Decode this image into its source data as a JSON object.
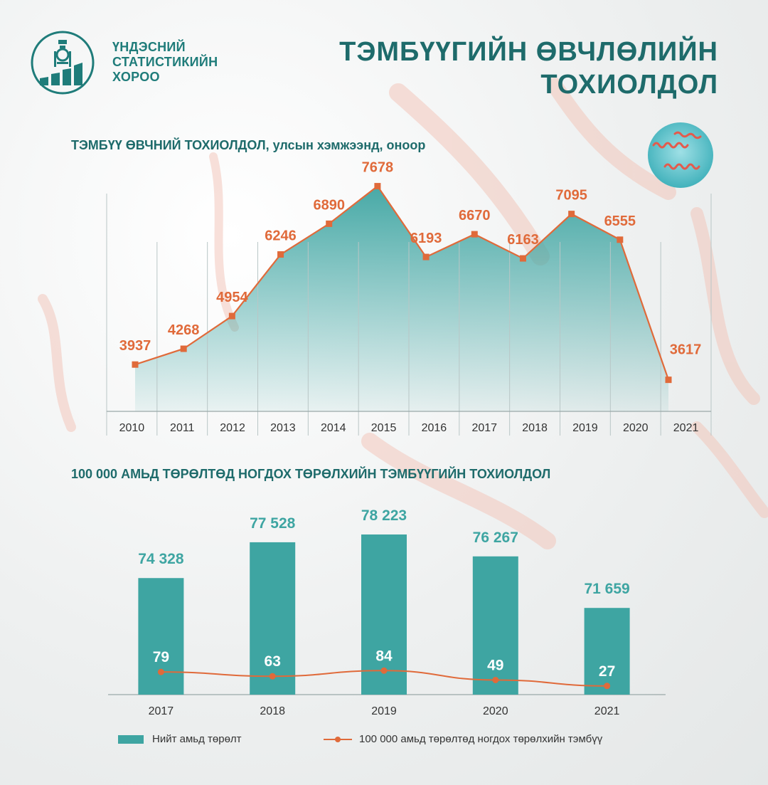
{
  "header": {
    "org_line1": "ҮНДЭСНИЙ",
    "org_line2": "СТАТИСТИКИЙН",
    "org_line3": "ХОРОО",
    "title_line1": "ТЭМБҮҮГИЙН ӨВЧЛӨЛИЙН",
    "title_line2": "ТОХИОЛДОЛ"
  },
  "colors": {
    "teal": "#3ea5a2",
    "dark_teal": "#1e6b6b",
    "orange": "#e06a3a"
  },
  "chart_data": [
    {
      "type": "line",
      "title": "ТЭМБҮҮ ӨВЧНИЙ ТОХИОЛДОЛ, улсын хэмжээнд, оноор",
      "categories": [
        "2010",
        "2011",
        "2012",
        "2013",
        "2014",
        "2015",
        "2016",
        "2017",
        "2018",
        "2019",
        "2020",
        "2021"
      ],
      "values": [
        3937,
        4268,
        4954,
        6246,
        6890,
        7678,
        6193,
        6670,
        6163,
        7095,
        6555,
        3617
      ],
      "area_fill": true,
      "grid": "vertical"
    },
    {
      "type": "bar",
      "title": "100 000 АМЬД ТӨРӨЛТӨД НОГДОХ ТӨРӨЛХИЙН ТЭМБҮҮГИЙН ТОХИОЛДОЛ",
      "categories": [
        "2017",
        "2018",
        "2019",
        "2020",
        "2021"
      ],
      "series": [
        {
          "name": "Нийт амьд төрөлт",
          "type": "bar",
          "values": [
            74328,
            77528,
            78223,
            76267,
            71659
          ],
          "labels": [
            "74 328",
            "77 528",
            "78 223",
            "76 267",
            "71 659"
          ]
        },
        {
          "name": "100 000 амьд төрөлтөд ногдох төрөлхийн тэмбүү",
          "type": "line",
          "values": [
            79,
            63,
            84,
            49,
            27
          ]
        }
      ],
      "legend": "bottom"
    }
  ]
}
